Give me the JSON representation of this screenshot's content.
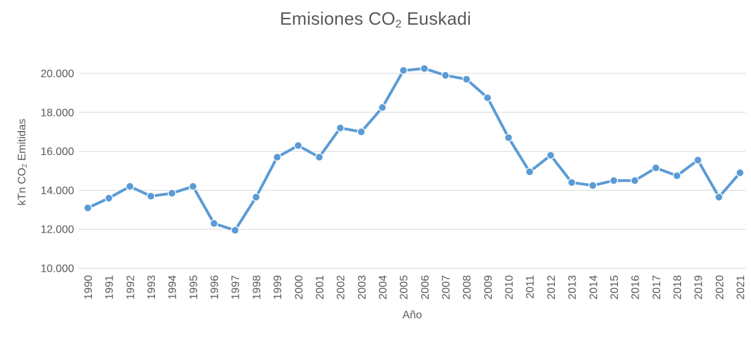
{
  "chart": {
    "title": {
      "prefix": "Emisiones CO",
      "sub": "2",
      "suffix": " Euskadi"
    },
    "y_axis_title": {
      "prefix": "kTn CO",
      "sub": "2",
      "suffix": " Emitidas"
    },
    "x_axis_title": "Año",
    "colors": {
      "line": "#5B9BD5",
      "marker_fill": "#5B9BD5",
      "marker_edge": "#ffffff",
      "gridline": "#D9D9D9",
      "text": "#595959",
      "background": "#ffffff"
    }
  },
  "chart_data": {
    "type": "line",
    "title": "Emisiones CO2 Euskadi",
    "xlabel": "Año",
    "ylabel": "kTn CO2 Emitidas",
    "categories": [
      "1990",
      "1991",
      "1992",
      "1993",
      "1994",
      "1995",
      "1996",
      "1997",
      "1998",
      "1999",
      "2000",
      "2001",
      "2002",
      "2003",
      "2004",
      "2005",
      "2006",
      "2007",
      "2008",
      "2009",
      "2010",
      "2011",
      "2012",
      "2013",
      "2014",
      "2015",
      "2016",
      "2017",
      "2018",
      "2019",
      "2020",
      "2021"
    ],
    "series": [
      {
        "name": "Emisiones CO2 Euskadi",
        "values": [
          13100,
          13600,
          14200,
          13700,
          13850,
          14200,
          12300,
          11950,
          13650,
          15700,
          16300,
          15700,
          17200,
          17000,
          18250,
          20150,
          20250,
          19900,
          19700,
          18750,
          16700,
          14950,
          15800,
          14400,
          14250,
          14500,
          14500,
          15150,
          14750,
          15550,
          13650,
          14900
        ]
      }
    ],
    "ylim": [
      10000,
      20000
    ],
    "ytick_step": 2000,
    "ytick_labels": [
      "10.000",
      "12.000",
      "14.000",
      "16.000",
      "18.000",
      "20.000"
    ],
    "grid": true,
    "legend_position": "none",
    "marker": "circle"
  }
}
